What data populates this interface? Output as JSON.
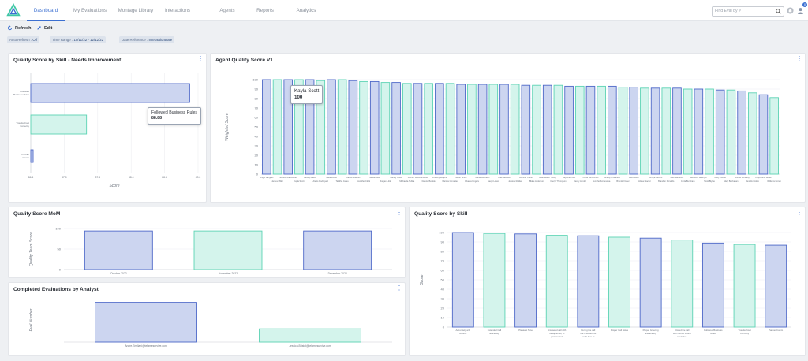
{
  "nav": {
    "tabs": [
      "Dashboard",
      "My Evaluations",
      "Montage Library",
      "Interactions",
      "Agents",
      "Reports",
      "Analytics"
    ],
    "active_tab": 0,
    "search_placeholder": "Find Eval by #",
    "notification_count": "0"
  },
  "toolbar": {
    "refresh_label": "Refresh",
    "edit_label": "Edit"
  },
  "filters": [
    {
      "label": "Auto Refresh :",
      "value": "Off"
    },
    {
      "label": "Time Range :",
      "value": "10/11/22 - 12/12/22"
    },
    {
      "label": "Date Reference :",
      "value": "InteractionDate"
    }
  ],
  "colors": {
    "accent": "#3b6fd1",
    "blue_fill": "#ccd5f0",
    "blue_stroke": "#4d68c8",
    "green_fill": "#d4f4ec",
    "green_stroke": "#5cd3b4"
  },
  "cards": {
    "skill_needs": {
      "title": "Quality Score by Skill - Needs Improvement",
      "tooltip": {
        "label": "Followed Business Rules",
        "value": "88.88"
      }
    },
    "agent_v1": {
      "title": "Agent Quality Score V1",
      "tooltip": {
        "label": "Kayla Scott",
        "value": "100"
      }
    },
    "mom": {
      "title": "Quality Score MoM"
    },
    "by_skill": {
      "title": "Quality Score by Skill"
    },
    "completed": {
      "title": "Completed Evaluations by Analyst"
    }
  },
  "chart_data": [
    {
      "id": "skill_needs",
      "type": "bar",
      "orientation": "horizontal",
      "categories": [
        "Followed Business Rules",
        "Troubleshoot Correctly",
        "Partner Comm"
      ],
      "values": [
        88.88,
        87.4,
        86.6
      ],
      "xlabel": "Score",
      "xlim": [
        86.6,
        89.0
      ],
      "xticks": [
        "86.6",
        "87.0",
        "87.5",
        "88.0",
        "88.5",
        "89.0"
      ]
    },
    {
      "id": "agent_v1",
      "type": "bar",
      "categories": [
        "Angel Gargiulli",
        "James Miller",
        "Jessica MacAllister",
        "Kayla Scott",
        "Lainey Black",
        "Alexis Rodriguez",
        "Mara Lucas",
        "Tabitha Jones",
        "Claude Sullivan",
        "Jennifer Clark",
        "Jill Renolds",
        "Morgan Little",
        "Manny Cross",
        "Michaelia Tubba",
        "Lauren Wedmanwood",
        "Dakota Bellisle",
        "Anthony Rogers",
        "Marcus Gonzalez",
        "Jason Smith",
        "Charles Rogers",
        "Maria Gonzalez",
        "Sanjit Lopez",
        "Mike Jackson",
        "Jessica Radke",
        "Jennifer Chew",
        "Blake Anderson",
        "Noahdwane Young",
        "Cheryl Thompson",
        "Kaylene Chan",
        "Danny Arnold",
        "Clyde Humphries",
        "Jennifer Kornouska",
        "Shelby Brookfield",
        "Brenda Fisher",
        "Rita Austin",
        "Alissa Glacier",
        "LaToya Jacobs",
        "Brandon Donaldo",
        "Alex Sandoval",
        "Carla Burnham",
        "Rebecca Bellinger",
        "Scott Blythe",
        "Andy Kovalk",
        "Mary Buchanan",
        "Yvonne Donnelly",
        "Jennifer Adam",
        "Leopoldina Burke",
        "Williams Brown"
      ],
      "values": [
        100,
        100,
        100,
        100,
        100,
        99,
        100,
        100,
        99,
        98,
        98,
        97,
        97,
        96,
        96,
        96,
        96,
        96,
        95,
        95,
        95,
        95,
        95,
        95,
        94,
        94,
        94,
        94,
        93,
        93,
        93,
        93,
        93,
        92,
        92,
        91,
        91,
        91,
        91,
        90,
        90,
        90,
        89,
        89,
        88,
        86,
        84,
        81
      ],
      "ylabel": "Weighted Score",
      "ylim": [
        0,
        100
      ],
      "yticks": [
        "0",
        "10",
        "20",
        "30",
        "40",
        "50",
        "60",
        "70",
        "80",
        "90",
        "100"
      ]
    },
    {
      "id": "mom",
      "type": "bar",
      "categories": [
        "October 2022",
        "November 2022",
        "December 2022"
      ],
      "values": [
        94,
        94,
        94
      ],
      "ylabel": "Quality Team Score",
      "ylim": [
        0,
        100
      ],
      "yticks": [
        "0",
        "50",
        "100"
      ]
    },
    {
      "id": "by_skill",
      "type": "bar",
      "categories": [
        "Accurately and Adhere",
        "Extended Call Efficiently",
        "Pleasant Tone",
        "Answered call with headphones, in position and prepared to the scripts",
        "During the call the CSR did not touch face or finger",
        "Proper Call Notes",
        "Proper Greeting and Ending",
        "Closed the call with correct sound resolution",
        "Followed Business Rules",
        "Troubleshoot Correctly",
        "Partner Comm"
      ],
      "values": [
        100,
        99,
        98.5,
        97,
        96.5,
        95,
        94,
        92,
        88.88,
        87.4,
        86.6
      ],
      "ylabel": "Score",
      "ylim": [
        0,
        100
      ],
      "yticks": [
        "0",
        "10",
        "20",
        "30",
        "40",
        "50",
        "60",
        "70",
        "80",
        "90",
        "100"
      ]
    },
    {
      "id": "completed",
      "type": "bar",
      "categories": [
        "Andre.Emiliani@telamesurvive.com",
        "Jessica.Bristol@telamesurvive.com"
      ],
      "values": [
        9,
        3
      ],
      "ylabel": "Eval Number",
      "ylim": [
        0,
        10
      ]
    }
  ]
}
